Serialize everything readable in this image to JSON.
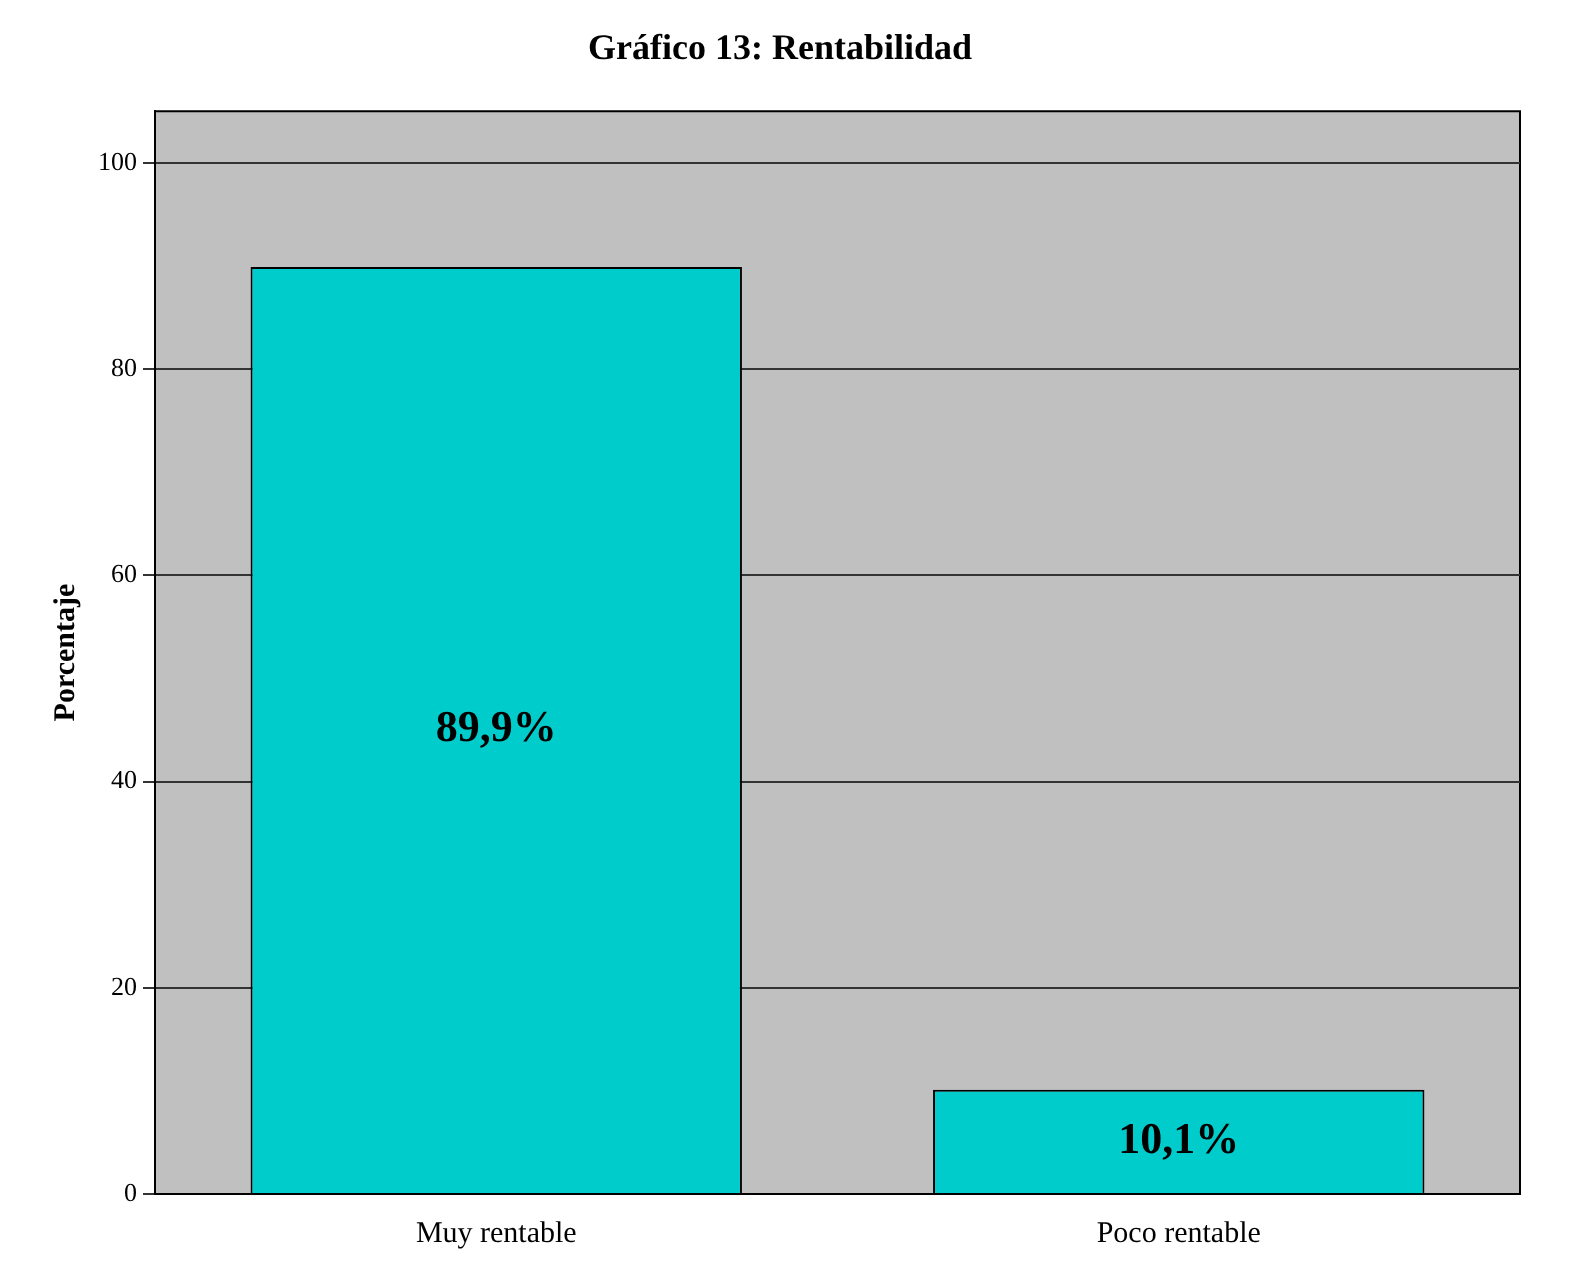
{
  "chart_data": {
    "type": "bar",
    "title": "Gráfico 13: Rentabilidad",
    "ylabel": "Porcentaje",
    "categories": [
      "Muy rentable",
      "Poco rentable"
    ],
    "values": [
      89.9,
      10.1
    ],
    "color": "#00cccc",
    "value_labels": [
      "89,9%",
      "10,1%"
    ],
    "ylim": [
      0,
      105
    ],
    "yticks": [
      0,
      20,
      40,
      60,
      80,
      100
    ],
    "grid": "y"
  }
}
